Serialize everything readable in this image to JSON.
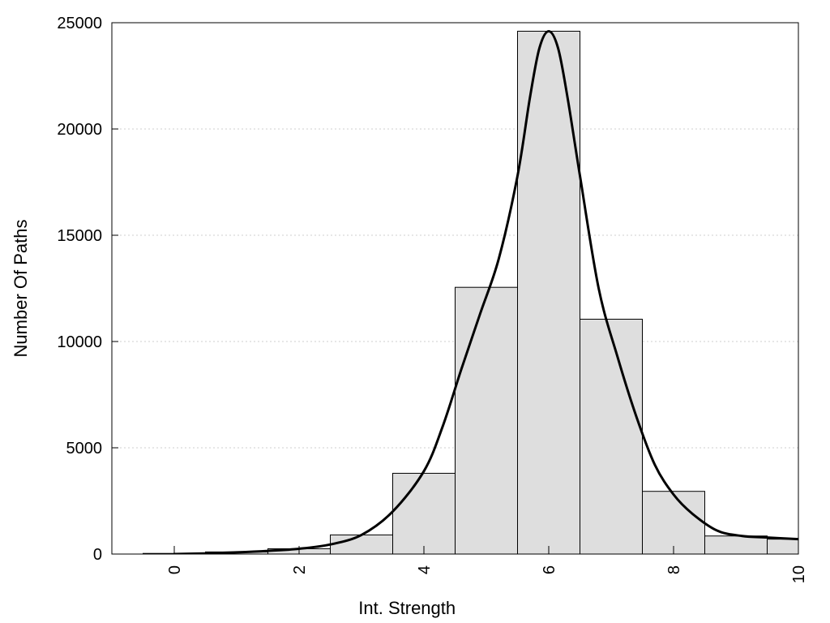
{
  "chart_data": {
    "type": "bar",
    "xlabel": "Int. Strength",
    "ylabel": "Number Of Paths",
    "xlim": [
      -1,
      10
    ],
    "ylim": [
      0,
      25000
    ],
    "grid": "horizontal-dotted",
    "legend": "none",
    "x_ticks": [
      0,
      2,
      4,
      6,
      8,
      10
    ],
    "x_tick_labels": [
      "0",
      "2",
      "4",
      "6",
      "8",
      "10"
    ],
    "y_ticks": [
      0,
      5000,
      10000,
      15000,
      20000,
      25000
    ],
    "y_tick_labels": [
      "0",
      "5000",
      "10000",
      "15000",
      "20000",
      "25000"
    ],
    "bars": {
      "x": [
        0,
        1,
        2,
        3,
        4,
        5,
        6,
        7,
        8,
        9,
        10
      ],
      "values": [
        30,
        100,
        250,
        900,
        3800,
        12550,
        24600,
        11050,
        2950,
        850,
        700
      ],
      "width": 1
    },
    "curve": {
      "x": [
        0,
        0.5,
        1,
        1.5,
        2,
        2.5,
        3,
        3.5,
        4,
        4.3,
        4.6,
        4.9,
        5.2,
        5.5,
        5.7,
        5.85,
        6,
        6.15,
        6.3,
        6.5,
        6.8,
        7.1,
        7.4,
        7.7,
        8,
        8.3,
        8.7,
        9.1,
        9.5,
        10
      ],
      "y": [
        0,
        30,
        80,
        150,
        250,
        450,
        900,
        2000,
        3900,
        6000,
        8700,
        11300,
        13900,
        17800,
        21500,
        23800,
        24600,
        23800,
        21500,
        17800,
        12500,
        9300,
        6500,
        4200,
        2800,
        1900,
        1100,
        850,
        780,
        700
      ]
    },
    "colors": {
      "bar_fill": "#dedede",
      "bar_stroke": "#000000",
      "curve": "#000000",
      "grid": "#cfcfcf"
    }
  }
}
